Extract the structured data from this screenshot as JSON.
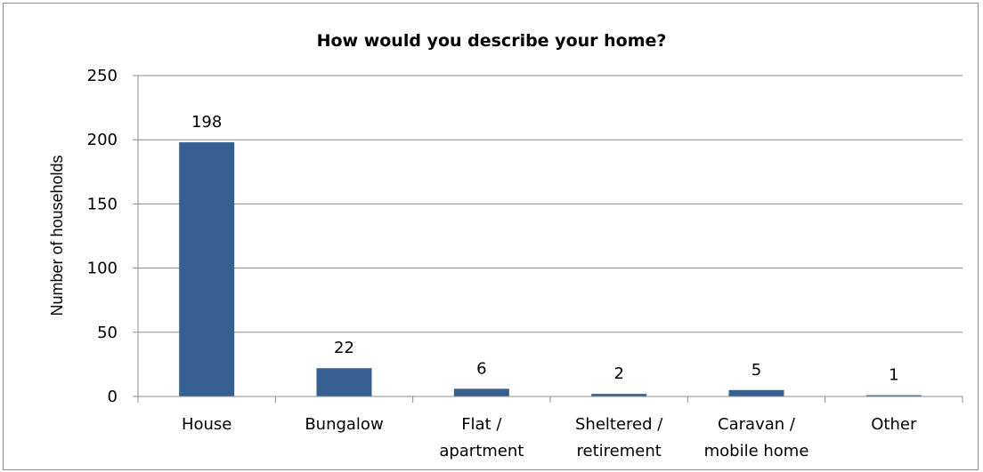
{
  "chart_data": {
    "type": "bar",
    "title": "How would you describe your home?",
    "ylabel": "Number of households",
    "xlabel": "",
    "ylim": [
      0,
      250
    ],
    "yticks": [
      0,
      50,
      100,
      150,
      200,
      250
    ],
    "categories": [
      [
        "House"
      ],
      [
        "Bungalow"
      ],
      [
        "Flat /",
        "apartment"
      ],
      [
        "Sheltered /",
        "retirement"
      ],
      [
        "Caravan /",
        "mobile home"
      ],
      [
        "Other"
      ]
    ],
    "values": [
      198,
      22,
      6,
      2,
      5,
      1
    ],
    "data_labels": [
      "198",
      "22",
      "6",
      "2",
      "5",
      "1"
    ],
    "grid": true,
    "legend": "none",
    "colors": {
      "bar": "#366092",
      "grid": "#8c8c8c",
      "axis": "#8c8c8c"
    }
  }
}
